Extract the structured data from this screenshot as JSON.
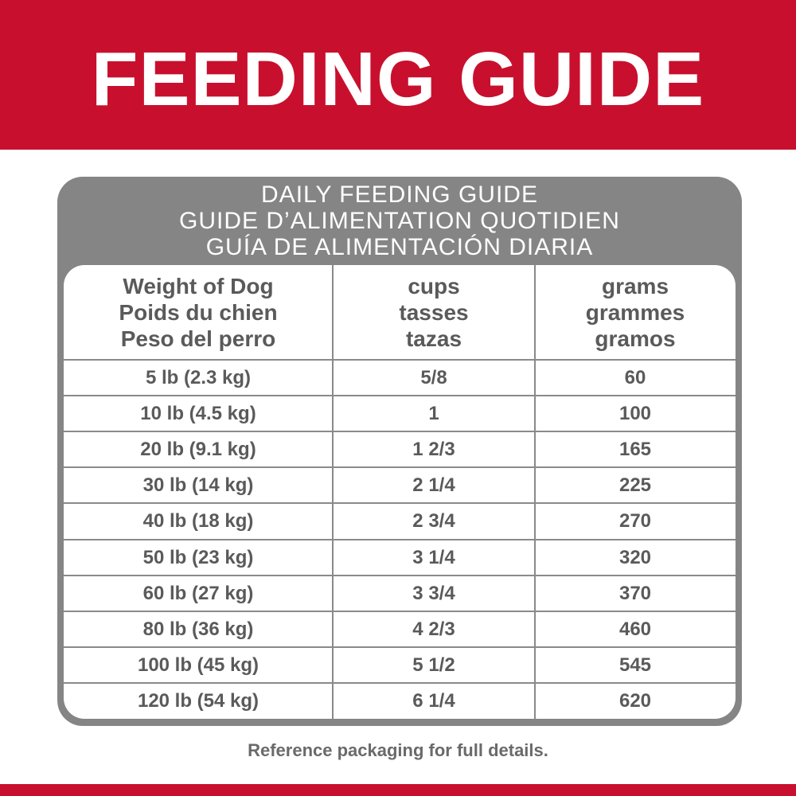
{
  "header": {
    "title": "FEEDING GUIDE"
  },
  "table": {
    "title_lines": [
      "DAILY FEEDING GUIDE",
      "GUIDE D’ALIMENTATION QUOTIDIEN",
      "GUÍA DE ALIMENTACIÓN DIARIA"
    ],
    "columns": [
      [
        "Weight of Dog",
        "Poids du chien",
        "Peso del perro"
      ],
      [
        "cups",
        "tasses",
        "tazas"
      ],
      [
        "grams",
        "grammes",
        "gramos"
      ]
    ],
    "rows": [
      [
        "5 lb (2.3 kg)",
        "5/8",
        "60"
      ],
      [
        "10 lb (4.5 kg)",
        "1",
        "100"
      ],
      [
        "20 lb (9.1 kg)",
        "1 2/3",
        "165"
      ],
      [
        "30 lb (14 kg)",
        "2 1/4",
        "225"
      ],
      [
        "40 lb (18 kg)",
        "2 3/4",
        "270"
      ],
      [
        "50 lb (23 kg)",
        "3 1/4",
        "320"
      ],
      [
        "60 lb (27 kg)",
        "3 3/4",
        "370"
      ],
      [
        "80 lb (36 kg)",
        "4 2/3",
        "460"
      ],
      [
        "100 lb (45 kg)",
        "5 1/2",
        "545"
      ],
      [
        "120 lb (54 kg)",
        "6 1/4",
        "620"
      ]
    ]
  },
  "footer": {
    "note": "Reference packaging for full details."
  }
}
